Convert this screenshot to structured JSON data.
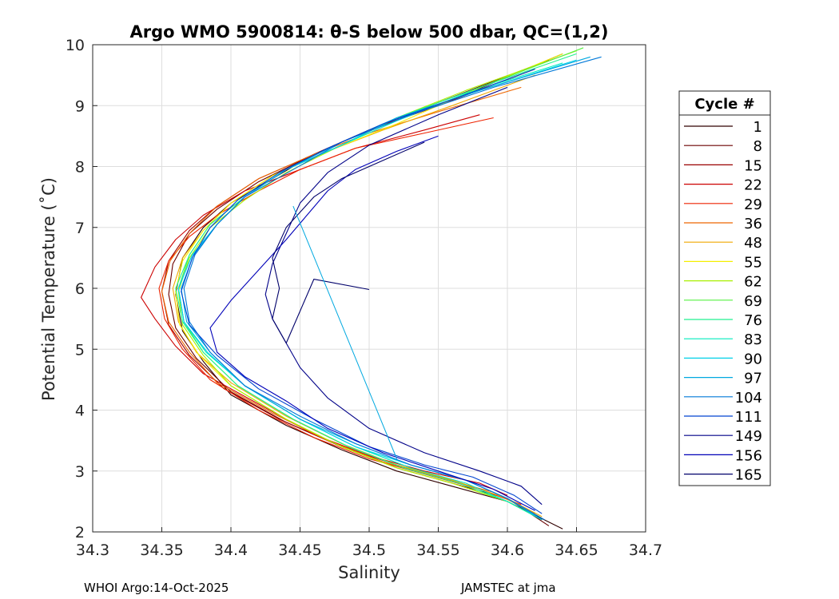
{
  "chart_data": {
    "type": "line",
    "title": "Argo WMO 5900814: θ-S below 500 dbar,  QC=(1,2)",
    "xlabel": "Salinity",
    "ylabel": "Potential Temperature (˚C)",
    "xlim": [
      34.3,
      34.7
    ],
    "ylim": [
      2,
      10
    ],
    "x_ticks": [
      "34.3",
      "34.35",
      "34.4",
      "34.45",
      "34.5",
      "34.55",
      "34.6",
      "34.65",
      "34.7"
    ],
    "y_ticks": [
      "2",
      "3",
      "4",
      "5",
      "6",
      "7",
      "8",
      "9",
      "10"
    ],
    "grid": true,
    "legend": {
      "title": "Cycle #",
      "position": "right",
      "entries": [
        {
          "label": "1",
          "color": "#300000"
        },
        {
          "label": "8",
          "color": "#6b0000"
        },
        {
          "label": "15",
          "color": "#990000"
        },
        {
          "label": "22",
          "color": "#cc0000"
        },
        {
          "label": "29",
          "color": "#ee2200"
        },
        {
          "label": "36",
          "color": "#ee6600"
        },
        {
          "label": "48",
          "color": "#f0a800"
        },
        {
          "label": "55",
          "color": "#f5ef00"
        },
        {
          "label": "62",
          "color": "#a8f000"
        },
        {
          "label": "69",
          "color": "#55f040"
        },
        {
          "label": "76",
          "color": "#20f090"
        },
        {
          "label": "83",
          "color": "#00ecbe"
        },
        {
          "label": "90",
          "color": "#00d0e8"
        },
        {
          "label": "97",
          "color": "#00a8e0"
        },
        {
          "label": "104",
          "color": "#0078d8"
        },
        {
          "label": "111",
          "color": "#0044d0"
        },
        {
          "label": "149",
          "color": "#000088"
        },
        {
          "label": "156",
          "color": "#0000b8"
        },
        {
          "label": "165",
          "color": "#00006a"
        }
      ]
    },
    "series": [
      {
        "name": "1",
        "x": [
          34.64,
          34.55,
          34.5,
          34.46,
          34.43,
          34.4,
          34.38,
          34.365,
          34.36,
          34.365,
          34.38,
          34.4,
          34.44,
          34.48,
          34.52,
          34.56,
          34.6,
          34.64
        ],
        "y": [
          9.85,
          9.0,
          8.6,
          8.2,
          7.8,
          7.4,
          7.0,
          6.5,
          5.9,
          5.3,
          4.8,
          4.25,
          3.75,
          3.35,
          3.0,
          2.75,
          2.5,
          2.05
        ]
      },
      {
        "name": "8",
        "x": [
          34.63,
          34.55,
          34.5,
          34.46,
          34.42,
          34.39,
          34.37,
          34.358,
          34.355,
          34.36,
          34.375,
          34.4,
          34.44,
          34.48,
          34.52,
          34.56,
          34.6,
          34.63
        ],
        "y": [
          9.75,
          9.05,
          8.6,
          8.2,
          7.75,
          7.3,
          6.9,
          6.4,
          5.9,
          5.35,
          4.85,
          4.3,
          3.8,
          3.4,
          3.05,
          2.8,
          2.55,
          2.1
        ]
      },
      {
        "name": "15",
        "x": [
          34.62,
          34.55,
          34.5,
          34.46,
          34.42,
          34.39,
          34.37,
          34.355,
          34.35,
          34.355,
          34.37,
          34.395,
          34.435,
          34.48,
          34.52,
          34.56,
          34.6,
          34.625
        ],
        "y": [
          9.6,
          9.0,
          8.6,
          8.2,
          7.8,
          7.35,
          6.95,
          6.45,
          5.95,
          5.4,
          4.9,
          4.35,
          3.85,
          3.4,
          3.1,
          2.85,
          2.55,
          2.2
        ]
      },
      {
        "name": "22",
        "x": [
          34.58,
          34.54,
          34.49,
          34.45,
          34.41,
          34.38,
          34.36,
          34.345,
          34.335,
          34.345,
          34.36,
          34.38,
          34.42,
          34.46,
          34.5,
          34.54,
          34.58,
          34.6
        ],
        "y": [
          8.85,
          8.6,
          8.3,
          7.95,
          7.6,
          7.2,
          6.8,
          6.35,
          5.85,
          5.5,
          5.05,
          4.6,
          4.1,
          3.6,
          3.25,
          3.0,
          2.8,
          2.6
        ]
      },
      {
        "name": "29",
        "x": [
          34.59,
          34.54,
          34.49,
          34.45,
          34.42,
          34.39,
          34.37,
          34.355,
          34.348,
          34.352,
          34.365,
          34.385,
          34.42,
          34.46,
          34.5,
          34.54,
          34.58,
          34.61
        ],
        "y": [
          8.8,
          8.55,
          8.3,
          7.95,
          7.6,
          7.2,
          6.85,
          6.45,
          6.0,
          5.5,
          5.0,
          4.5,
          4.0,
          3.55,
          3.2,
          2.95,
          2.7,
          2.45
        ]
      },
      {
        "name": "36",
        "x": [
          34.61,
          34.55,
          34.5,
          34.46,
          34.42,
          34.39,
          34.37,
          34.356,
          34.35,
          34.355,
          34.37,
          34.39,
          34.43,
          34.47,
          34.51,
          34.55,
          34.59,
          34.62
        ],
        "y": [
          9.3,
          8.9,
          8.55,
          8.2,
          7.8,
          7.35,
          6.9,
          6.45,
          5.95,
          5.45,
          4.95,
          4.45,
          3.95,
          3.5,
          3.15,
          2.9,
          2.65,
          2.3
        ]
      },
      {
        "name": "48",
        "x": [
          34.62,
          34.56,
          34.51,
          34.47,
          34.43,
          34.4,
          34.38,
          34.365,
          34.358,
          34.362,
          34.375,
          34.4,
          34.44,
          34.48,
          34.52,
          34.56,
          34.6,
          34.625
        ],
        "y": [
          9.5,
          9.0,
          8.6,
          8.25,
          7.85,
          7.4,
          6.95,
          6.5,
          6.0,
          5.45,
          4.95,
          4.45,
          3.9,
          3.45,
          3.1,
          2.85,
          2.55,
          2.25
        ]
      },
      {
        "name": "55",
        "x": [
          34.64,
          34.57,
          34.52,
          34.47,
          34.43,
          34.4,
          34.38,
          34.365,
          34.36,
          34.363,
          34.377,
          34.4,
          34.44,
          34.48,
          34.52,
          34.56,
          34.6,
          34.625
        ],
        "y": [
          9.85,
          9.2,
          8.7,
          8.25,
          7.85,
          7.4,
          6.95,
          6.45,
          5.95,
          5.4,
          4.9,
          4.4,
          3.85,
          3.4,
          3.05,
          2.8,
          2.5,
          2.2
        ]
      },
      {
        "name": "62",
        "x": [
          34.65,
          34.57,
          34.52,
          34.48,
          34.44,
          34.41,
          34.385,
          34.37,
          34.362,
          34.365,
          34.38,
          34.4,
          34.44,
          34.48,
          34.52,
          34.56,
          34.6,
          34.625
        ],
        "y": [
          9.9,
          9.25,
          8.8,
          8.35,
          7.9,
          7.45,
          7.0,
          6.5,
          5.95,
          5.4,
          4.9,
          4.4,
          3.85,
          3.4,
          3.05,
          2.8,
          2.5,
          2.2
        ]
      },
      {
        "name": "69",
        "x": [
          34.655,
          34.58,
          34.52,
          34.48,
          34.44,
          34.41,
          34.385,
          34.37,
          34.362,
          34.366,
          34.38,
          34.405,
          34.445,
          34.485,
          34.525,
          34.565,
          34.6,
          34.625
        ],
        "y": [
          9.95,
          9.3,
          8.8,
          8.35,
          7.95,
          7.5,
          7.05,
          6.55,
          6.0,
          5.45,
          4.95,
          4.4,
          3.85,
          3.4,
          3.05,
          2.8,
          2.5,
          2.2
        ]
      },
      {
        "name": "76",
        "x": [
          34.65,
          34.58,
          34.52,
          34.48,
          34.44,
          34.41,
          34.385,
          34.37,
          34.36,
          34.365,
          34.38,
          34.405,
          34.445,
          34.485,
          34.525,
          34.565,
          34.6,
          34.625
        ],
        "y": [
          9.85,
          9.3,
          8.8,
          8.35,
          7.95,
          7.5,
          7.05,
          6.55,
          6.0,
          5.45,
          4.95,
          4.4,
          3.85,
          3.4,
          3.05,
          2.8,
          2.5,
          2.2
        ]
      },
      {
        "name": "83",
        "x": [
          34.64,
          34.57,
          34.52,
          34.48,
          34.44,
          34.41,
          34.39,
          34.372,
          34.362,
          34.366,
          34.382,
          34.41,
          34.45,
          34.49,
          34.53,
          34.57,
          34.6,
          34.625
        ],
        "y": [
          9.7,
          9.2,
          8.75,
          8.35,
          7.95,
          7.5,
          7.05,
          6.55,
          6.0,
          5.45,
          4.95,
          4.4,
          3.85,
          3.4,
          3.05,
          2.8,
          2.5,
          2.2
        ]
      },
      {
        "name": "90",
        "x": [
          34.65,
          34.58,
          34.52,
          34.48,
          34.44,
          34.41,
          34.39,
          34.372,
          34.362,
          34.366,
          34.383,
          34.41,
          34.45,
          34.49,
          34.53,
          34.57,
          34.6,
          34.625
        ],
        "y": [
          9.75,
          9.25,
          8.8,
          8.35,
          7.95,
          7.5,
          7.05,
          6.55,
          6.0,
          5.45,
          4.95,
          4.4,
          3.85,
          3.4,
          3.1,
          2.85,
          2.55,
          2.2
        ]
      },
      {
        "name": "97",
        "x": [
          34.66,
          34.58,
          34.52,
          34.48,
          34.44,
          34.41,
          34.39,
          34.373,
          34.364,
          34.368,
          34.385,
          34.41,
          34.45,
          34.49,
          34.53,
          34.57,
          34.6,
          34.625
        ],
        "y": [
          9.8,
          9.25,
          8.8,
          8.4,
          7.95,
          7.5,
          7.05,
          6.55,
          6.0,
          5.45,
          4.95,
          4.4,
          3.85,
          3.45,
          3.1,
          2.85,
          2.55,
          2.2
        ]
      },
      {
        "name": "104",
        "x": [
          34.668,
          34.59,
          34.53,
          34.48,
          34.445,
          34.41,
          34.39,
          34.374,
          34.366,
          34.37,
          34.385,
          34.41,
          34.45,
          34.49,
          34.53,
          34.57,
          34.6,
          34.627
        ],
        "y": [
          9.8,
          9.3,
          8.85,
          8.4,
          7.95,
          7.5,
          7.05,
          6.55,
          6.0,
          5.45,
          4.95,
          4.4,
          3.9,
          3.45,
          3.1,
          2.85,
          2.55,
          2.2
        ]
      },
      {
        "name": "111",
        "x": [
          34.62,
          34.56,
          34.51,
          34.47,
          34.435,
          34.405,
          34.385,
          34.372,
          34.364,
          34.37,
          34.39,
          34.42,
          34.46,
          34.5,
          34.54,
          34.575,
          34.605,
          34.625
        ],
        "y": [
          9.6,
          9.1,
          8.7,
          8.3,
          7.9,
          7.45,
          7.0,
          6.5,
          5.95,
          5.4,
          4.9,
          4.35,
          3.85,
          3.4,
          3.1,
          2.9,
          2.6,
          2.3
        ]
      },
      {
        "name": "149",
        "x": [
          34.6,
          34.55,
          34.5,
          34.47,
          34.45,
          34.44,
          34.43,
          34.425,
          34.43,
          34.44,
          34.45,
          34.47,
          34.5,
          34.54,
          34.58,
          34.61,
          34.625
        ],
        "y": [
          9.3,
          8.85,
          8.35,
          7.9,
          7.4,
          6.9,
          6.4,
          5.9,
          5.5,
          5.1,
          4.7,
          4.2,
          3.7,
          3.3,
          3.0,
          2.75,
          2.45
        ]
      },
      {
        "name": "156",
        "x": [
          34.55,
          34.52,
          34.49,
          34.47,
          34.455,
          34.44,
          34.42,
          34.4,
          34.385,
          34.39,
          34.41,
          34.44,
          34.47,
          34.51,
          34.55,
          34.59,
          34.62
        ],
        "y": [
          8.5,
          8.25,
          7.95,
          7.6,
          7.2,
          6.8,
          6.3,
          5.8,
          5.35,
          4.95,
          4.55,
          4.15,
          3.7,
          3.3,
          3.0,
          2.7,
          2.35
        ]
      },
      {
        "name": "165",
        "x": [
          34.54,
          34.51,
          34.48,
          34.46,
          34.44,
          34.43,
          34.435,
          34.43,
          34.44,
          34.46,
          34.5
        ],
        "y": [
          8.4,
          8.1,
          7.8,
          7.5,
          7.0,
          6.5,
          6.0,
          5.5,
          5.1,
          6.15,
          5.98
        ]
      }
    ],
    "annotations": [
      {
        "type": "segment",
        "color": "#00a8e0",
        "x": [
          34.445,
          34.52
        ],
        "y": [
          7.35,
          3.2
        ]
      }
    ]
  },
  "footer": {
    "left": "WHOI Argo:14-Oct-2025",
    "right": "JAMSTEC at jma"
  }
}
